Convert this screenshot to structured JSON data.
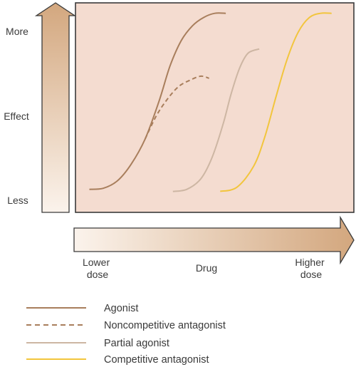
{
  "chart_data": {
    "type": "line",
    "title": "",
    "xlabel": "Drug",
    "ylabel": "Effect",
    "x_low_label": [
      "Lower",
      "dose"
    ],
    "x_high_label": [
      "Higher",
      "dose"
    ],
    "y_high_label": "More",
    "y_low_label": "Less",
    "x_axis_ticks": false,
    "y_axis_ticks": false,
    "grid": false,
    "legend_position": "bottom-left",
    "xlim": [
      0,
      10
    ],
    "ylim": [
      0,
      10
    ],
    "series": [
      {
        "name": "Agonist",
        "style": "solid",
        "color": "#a87e5c",
        "x": [
          0.5,
          1.0,
          1.5,
          2.0,
          2.5,
          3.0,
          3.4,
          3.8,
          4.2,
          4.6,
          5.0,
          5.4
        ],
        "y": [
          1.1,
          1.15,
          1.5,
          2.3,
          3.5,
          5.3,
          7.0,
          8.2,
          8.9,
          9.3,
          9.5,
          9.5
        ]
      },
      {
        "name": "Noncompetitive antagonist",
        "style": "dashed",
        "color": "#a87e5c",
        "x": [
          2.5,
          2.9,
          3.3,
          3.7,
          4.1,
          4.5,
          4.8
        ],
        "y": [
          3.5,
          4.6,
          5.4,
          6.0,
          6.3,
          6.5,
          6.4
        ]
      },
      {
        "name": "Partial agonist",
        "style": "solid",
        "color": "#cdb6a3",
        "x": [
          3.5,
          4.0,
          4.5,
          4.9,
          5.3,
          5.6,
          5.9,
          6.2,
          6.6
        ],
        "y": [
          1.0,
          1.1,
          1.6,
          2.6,
          4.2,
          5.7,
          6.9,
          7.6,
          7.8
        ]
      },
      {
        "name": "Competitive antagonist",
        "style": "solid",
        "color": "#f2c53d",
        "x": [
          5.2,
          5.8,
          6.4,
          6.8,
          7.2,
          7.6,
          8.0,
          8.4,
          8.8,
          9.2
        ],
        "y": [
          1.0,
          1.2,
          2.2,
          3.6,
          5.5,
          7.3,
          8.6,
          9.3,
          9.5,
          9.5
        ]
      }
    ]
  },
  "colors": {
    "panel_fill": "#f4dcd0",
    "panel_border": "#3a3a3a",
    "arrow_light": "#fbf3ec",
    "arrow_dark": "#d3a77e",
    "text": "#3a3a3a"
  }
}
